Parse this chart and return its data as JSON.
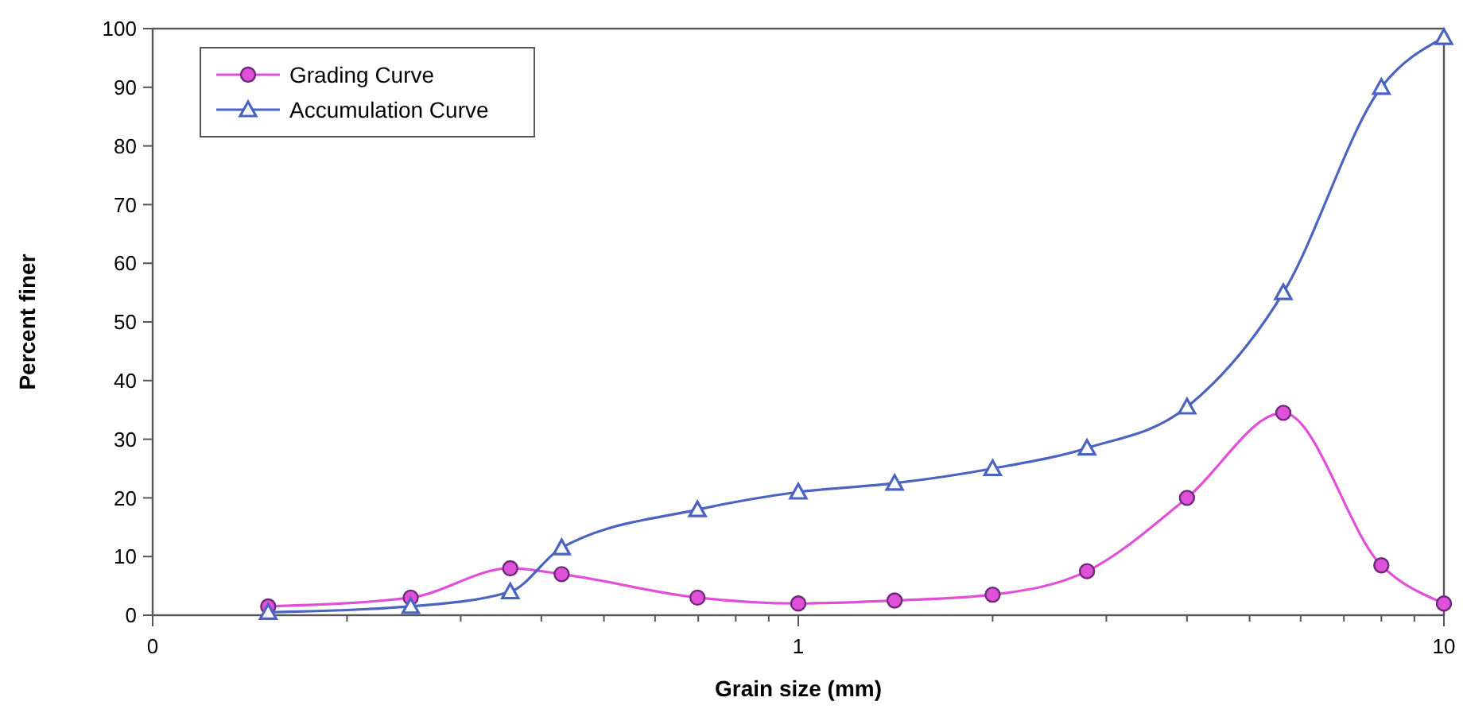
{
  "chart_data": {
    "type": "line",
    "xlabel": "Grain size (mm)",
    "ylabel": "Percent finer",
    "log": "x",
    "x": [
      0.151,
      0.251,
      0.358,
      0.43,
      0.698,
      1,
      1.41,
      2,
      2.8,
      4,
      5.64,
      8,
      10
    ],
    "series": [
      {
        "name": "Grading Curve",
        "color": "#e050d8",
        "marker": "circle",
        "values": [
          1.5,
          3,
          8,
          7,
          3,
          2,
          2.5,
          3.5,
          7.5,
          20,
          34.5,
          8.5,
          2
        ]
      },
      {
        "name": "Accumulation Curve",
        "color": "#4a64c0",
        "marker": "triangle",
        "values": [
          0.5,
          1.5,
          4,
          11.5,
          18,
          21,
          22.5,
          25,
          28.5,
          35.5,
          55,
          90,
          98.5
        ]
      }
    ],
    "xlim": [
      0.1,
      10
    ],
    "ylim": [
      0,
      100
    ],
    "xticks": [
      {
        "value": 0.1,
        "label": "0"
      },
      {
        "value": 0.2,
        "label": null
      },
      {
        "value": 0.3,
        "label": null
      },
      {
        "value": 0.4,
        "label": null
      },
      {
        "value": 0.5,
        "label": null
      },
      {
        "value": 0.6,
        "label": null
      },
      {
        "value": 0.7,
        "label": null
      },
      {
        "value": 0.8,
        "label": null
      },
      {
        "value": 0.9,
        "label": null
      },
      1,
      {
        "value": 2,
        "label": null
      },
      {
        "value": 3,
        "label": null
      },
      {
        "value": 4,
        "label": null
      },
      {
        "value": 5,
        "label": null
      },
      {
        "value": 6,
        "label": null
      },
      {
        "value": 7,
        "label": null
      },
      {
        "value": 8,
        "label": null
      },
      {
        "value": 9,
        "label": null
      },
      10
    ],
    "yticks": [
      0,
      10,
      20,
      30,
      40,
      50,
      60,
      70,
      80,
      90,
      100
    ],
    "grid": false,
    "legend": "top left",
    "line_style": "solid"
  }
}
